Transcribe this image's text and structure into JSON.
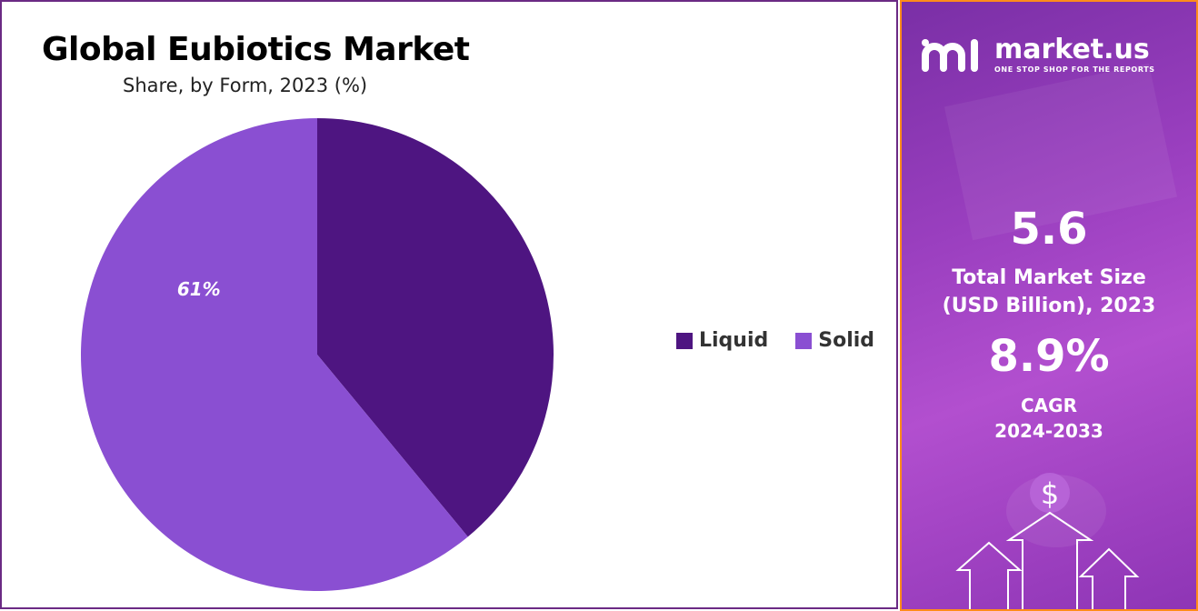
{
  "title": "Global Eubiotics Market",
  "subtitle": "Share, by Form, 2023 (%)",
  "chart_data": {
    "type": "pie",
    "title": "Global Eubiotics Market",
    "subtitle": "Share, by Form, 2023 (%)",
    "categories": [
      "Liquid",
      "Solid"
    ],
    "values": [
      39,
      61
    ],
    "data_labels": [
      "",
      "61%"
    ],
    "colors": [
      "#4e1581",
      "#8a4fd2"
    ],
    "start_angle_deg": 0,
    "legend_position": "right"
  },
  "legend": [
    {
      "label": "Liquid",
      "color": "#4e1581"
    },
    {
      "label": "Solid",
      "color": "#8a4fd2"
    }
  ],
  "brand": {
    "name": "market.us",
    "tagline": "ONE STOP SHOP FOR THE REPORTS",
    "icon": "market-us-logo-icon"
  },
  "stats": {
    "market_size_value": "5.6",
    "market_size_label_line1": "Total Market Size",
    "market_size_label_line2": "(USD Billion), 2023",
    "cagr_value": "8.9%",
    "cagr_label_line1": "CAGR",
    "cagr_label_line2": "2024-2033"
  },
  "decor": {
    "icon": "dollar-growth-arrows-icon",
    "symbol": "$"
  }
}
